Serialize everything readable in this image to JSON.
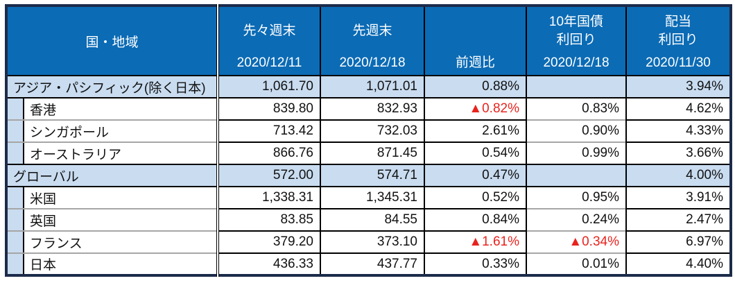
{
  "colors": {
    "header_bg": "#0b6bb5",
    "header_text": "#ffffff",
    "band_bg": "#c9dcf0",
    "grid": "#000000",
    "gray_grid": "#a6a6a6",
    "negative": "#e8231d",
    "outer_border": "#1c2b4a"
  },
  "table": {
    "header": {
      "region": "国・地域",
      "columns": [
        {
          "line1": "先々週末",
          "line2": "",
          "bottom": "2020/12/11"
        },
        {
          "line1": "先週末",
          "line2": "",
          "bottom": "2020/12/18"
        },
        {
          "line1": "",
          "line2": "",
          "bottom": "前週比"
        },
        {
          "line1": "10年国債",
          "line2": "利回り",
          "bottom": "2020/12/18"
        },
        {
          "line1": "配当",
          "line2": "利回り",
          "bottom": "2020/11/30"
        }
      ]
    },
    "rows": [
      {
        "name": "アジア・パシフィック(除く日本)",
        "type": "category",
        "values": [
          "1,061.70",
          "1,071.01",
          "0.88%",
          "",
          "3.94%"
        ]
      },
      {
        "name": "香港",
        "type": "sub",
        "values": [
          "839.80",
          "832.93",
          "▲0.82%",
          "0.83%",
          "4.62%"
        ]
      },
      {
        "name": "シンガポール",
        "type": "sub",
        "values": [
          "713.42",
          "732.03",
          "2.61%",
          "0.90%",
          "4.33%"
        ]
      },
      {
        "name": "オーストラリア",
        "type": "sub",
        "values": [
          "866.76",
          "871.45",
          "0.54%",
          "0.99%",
          "3.66%"
        ]
      },
      {
        "name": "グローバル",
        "type": "category",
        "values": [
          "572.00",
          "574.71",
          "0.47%",
          "",
          "4.00%"
        ]
      },
      {
        "name": "米国",
        "type": "sub",
        "values": [
          "1,338.31",
          "1,345.31",
          "0.52%",
          "0.95%",
          "3.91%"
        ]
      },
      {
        "name": "英国",
        "type": "sub",
        "values": [
          "83.85",
          "84.55",
          "0.84%",
          "0.24%",
          "2.47%"
        ]
      },
      {
        "name": "フランス",
        "type": "sub",
        "values": [
          "379.20",
          "373.10",
          "▲1.61%",
          "▲0.34%",
          "6.97%"
        ]
      },
      {
        "name": "日本",
        "type": "sub",
        "values": [
          "436.33",
          "437.77",
          "0.33%",
          "0.01%",
          "4.40%"
        ]
      }
    ]
  }
}
